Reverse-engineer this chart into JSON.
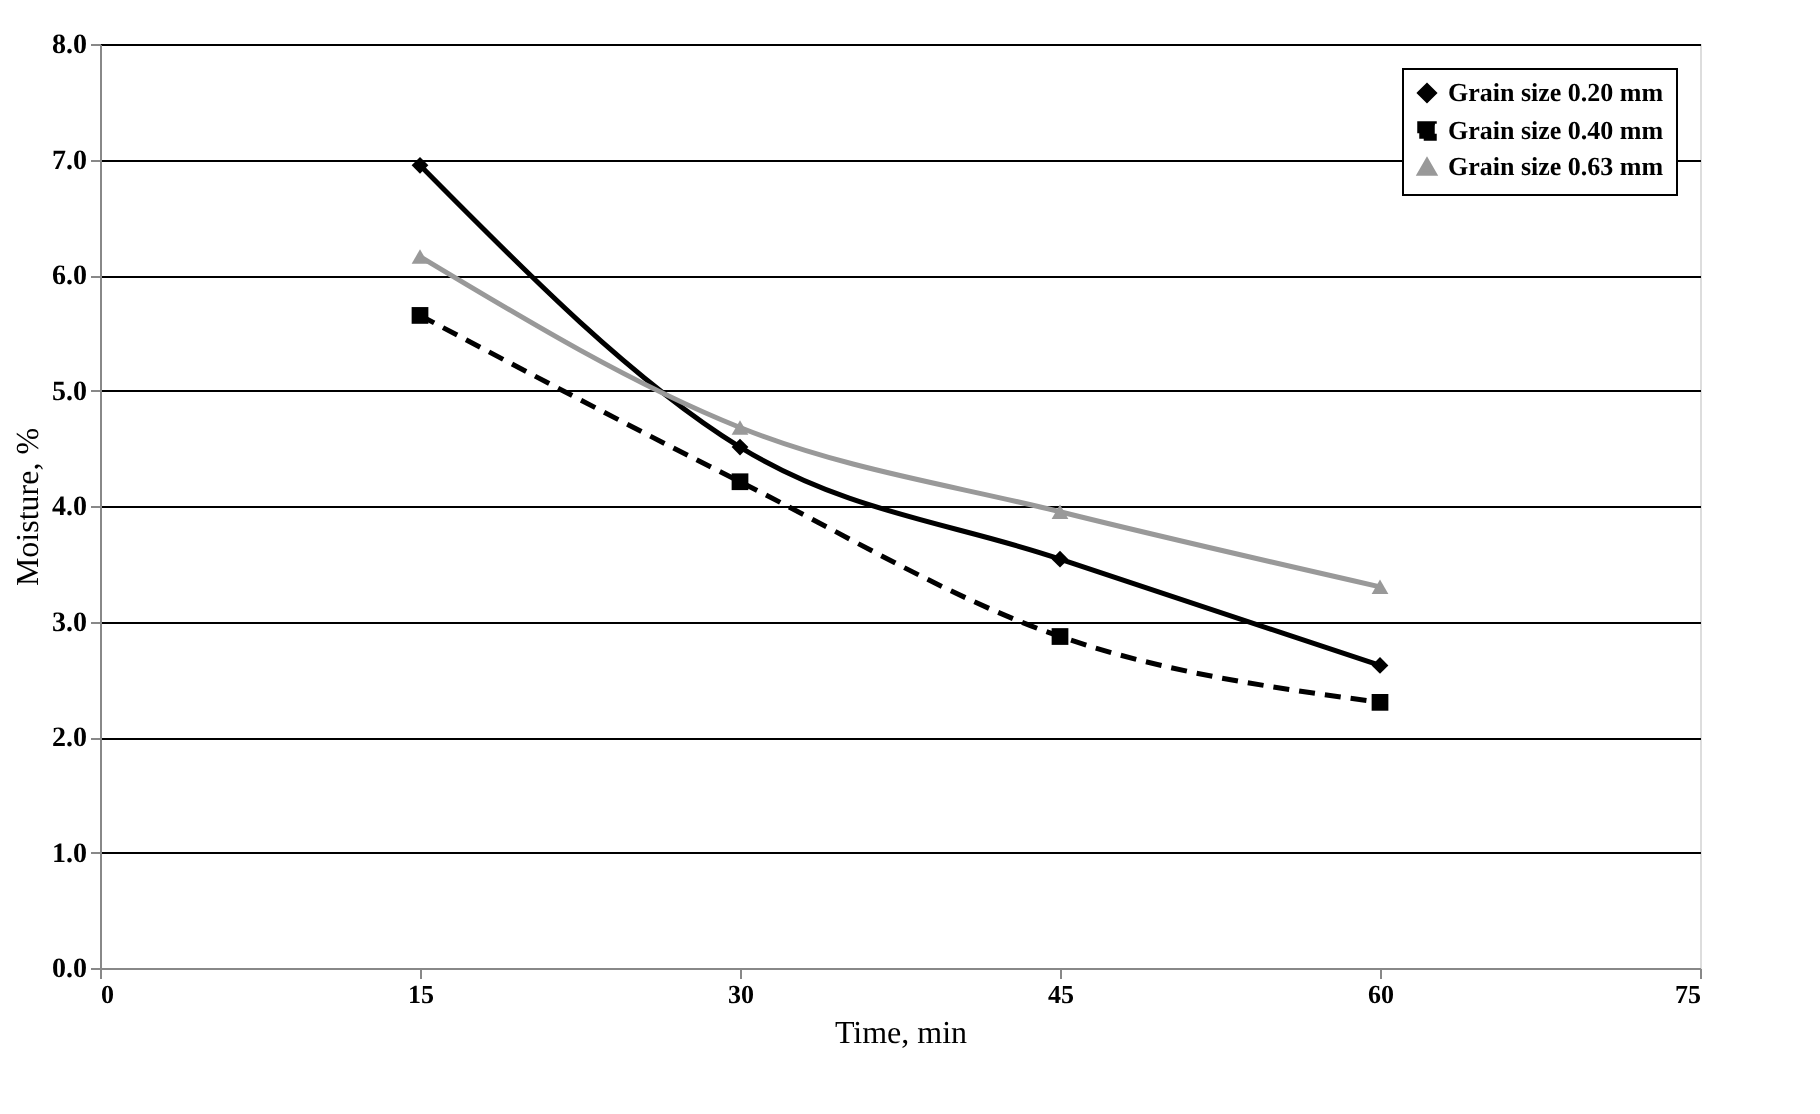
{
  "chart_data": {
    "type": "line",
    "xlabel": "Time, min",
    "ylabel": "Moisture, %",
    "x": [
      15,
      30,
      45,
      60
    ],
    "series": [
      {
        "name": "Grain size 0.20 mm",
        "color": "#000000",
        "marker": "diamond",
        "line_style": "solid",
        "values": [
          6.95,
          4.51,
          3.54,
          2.62
        ]
      },
      {
        "name": "Grain size 0.40 mm",
        "color": "#000000",
        "marker": "square",
        "line_style": "dashed",
        "values": [
          5.65,
          4.21,
          2.87,
          2.3
        ]
      },
      {
        "name": "Grain size 0.63 mm",
        "color": "#999999",
        "marker": "triangle",
        "line_style": "solid",
        "values": [
          6.16,
          4.68,
          3.95,
          3.3
        ]
      }
    ],
    "xlim": [
      0,
      75
    ],
    "xticks": [
      0,
      15,
      30,
      45,
      60,
      75
    ],
    "ylim": [
      0,
      8
    ],
    "yticks": [
      {
        "value": 0,
        "label": "0.0"
      },
      {
        "value": 1,
        "label": "1.0"
      },
      {
        "value": 2,
        "label": "2.0"
      },
      {
        "value": 3,
        "label": "3.0"
      },
      {
        "value": 4,
        "label": "4.0"
      },
      {
        "value": 5,
        "label": "5.0"
      },
      {
        "value": 6,
        "label": "6.0"
      },
      {
        "value": 7,
        "label": "7.0"
      },
      {
        "value": 8,
        "label": "8.0"
      }
    ],
    "grid": "y",
    "legend": "top right"
  }
}
